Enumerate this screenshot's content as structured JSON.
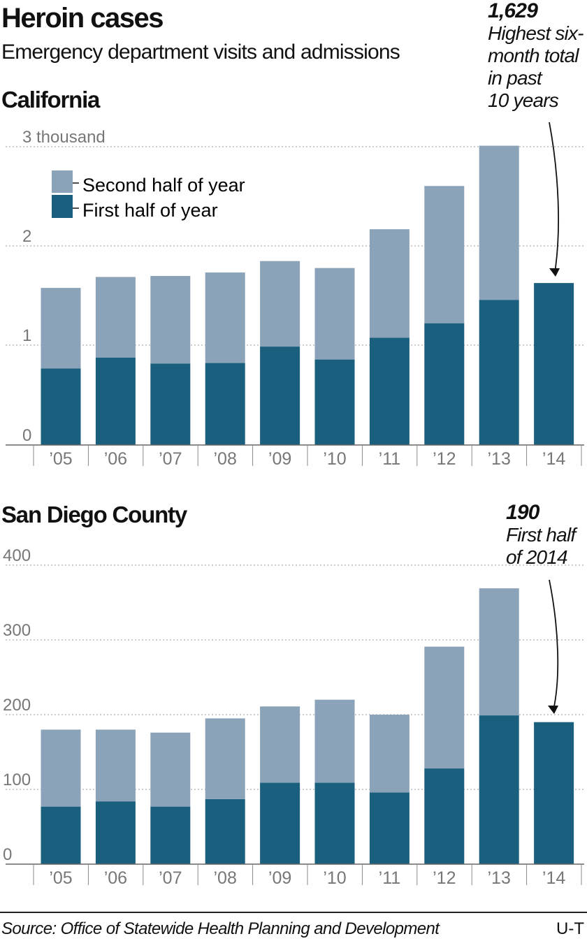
{
  "title": "Heroin cases",
  "subtitle": "Emergency department visits and admissions",
  "colors": {
    "first_half": "#1a5f7d",
    "second_half": "#8aa3b8",
    "grid": "#9a9a9a",
    "axis_text": "#777777"
  },
  "legend": {
    "second": "Second half of year",
    "first": "First half of year"
  },
  "chart_data": [
    {
      "type": "bar",
      "stacked": true,
      "title": "California",
      "categories": [
        "’05",
        "’06",
        "’07",
        "’08",
        "’09",
        "’10",
        "’11",
        "’12",
        "’13",
        "’14"
      ],
      "series": [
        {
          "name": "First half of year",
          "values": [
            770,
            880,
            820,
            825,
            990,
            860,
            1080,
            1225,
            1460,
            1629
          ]
        },
        {
          "name": "Second half of year",
          "values": [
            810,
            810,
            880,
            910,
            860,
            920,
            1090,
            1380,
            1550,
            0
          ]
        }
      ],
      "yticks": [
        "0",
        "1",
        "2",
        "3 thousand"
      ],
      "ylim": [
        0,
        3000
      ],
      "grid": true,
      "annotation": {
        "value": "1,629",
        "lines": [
          "Highest six-",
          "month total",
          "in past",
          "10 years"
        ]
      }
    },
    {
      "type": "bar",
      "stacked": true,
      "title": "San Diego County",
      "categories": [
        "’05",
        "’06",
        "’07",
        "’08",
        "’09",
        "’10",
        "’11",
        "’12",
        "’13",
        "’14"
      ],
      "series": [
        {
          "name": "First half of year",
          "values": [
            77,
            84,
            77,
            87,
            109,
            109,
            96,
            128,
            199,
            190
          ]
        },
        {
          "name": "Second half of year",
          "values": [
            103,
            96,
            99,
            108,
            102,
            111,
            104,
            163,
            170,
            0
          ]
        }
      ],
      "yticks": [
        "0",
        "100",
        "200",
        "300",
        "400"
      ],
      "ylim": [
        0,
        400
      ],
      "grid": true,
      "annotation": {
        "value": "190",
        "lines": [
          "First half",
          "of 2014"
        ]
      }
    }
  ],
  "source": "Source: Office of Statewide Health Planning and Development",
  "credit": "U-T"
}
